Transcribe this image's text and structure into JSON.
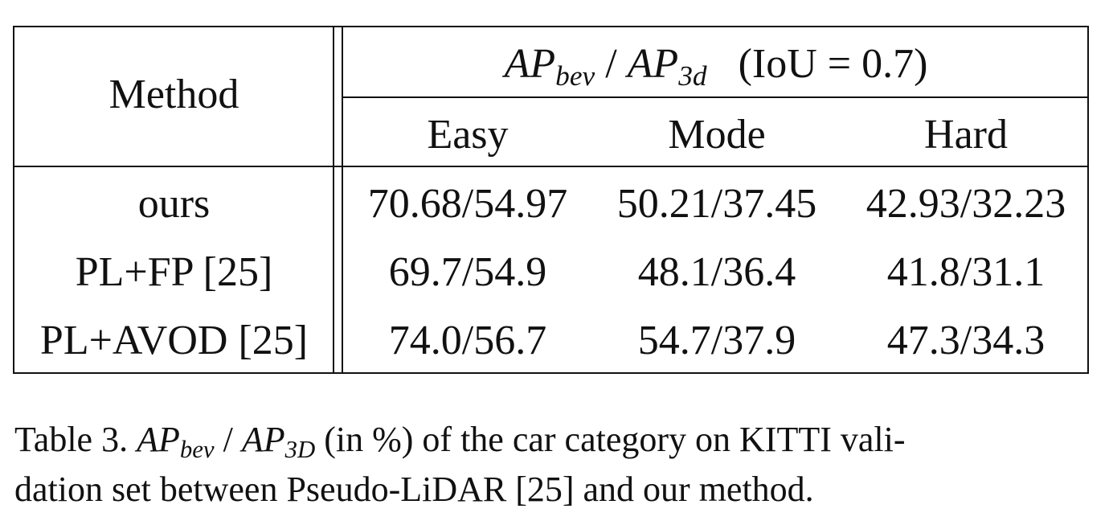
{
  "table": {
    "header": {
      "method_label": "Method",
      "metric_prefix_a": "AP",
      "metric_sub_a": "bev",
      "metric_sep": "/",
      "metric_prefix_b": "AP",
      "metric_sub_b": "3d",
      "metric_iou": "(IoU = 0.7)",
      "columns": [
        "Easy",
        "Mode",
        "Hard"
      ]
    },
    "rows": [
      {
        "method": "ours",
        "easy": "70.68/54.97",
        "mode": "50.21/37.45",
        "hard": "42.93/32.23"
      },
      {
        "method": "PL+FP [25]",
        "easy": "69.7/54.9",
        "mode": "48.1/36.4",
        "hard": "41.8/31.1"
      },
      {
        "method": "PL+AVOD [25]",
        "easy": "74.0/56.7",
        "mode": "54.7/37.9",
        "hard": "47.3/34.3"
      }
    ]
  },
  "caption": {
    "label": "Table 3.",
    "prefix_a": "AP",
    "sub_a": "bev",
    "sep": "/",
    "prefix_b": "AP",
    "sub_b": "3D",
    "text_line1": "(in %) of the car category on KITTI vali-",
    "text_line2": "dation set between Pseudo-LiDAR [25] and our method."
  }
}
